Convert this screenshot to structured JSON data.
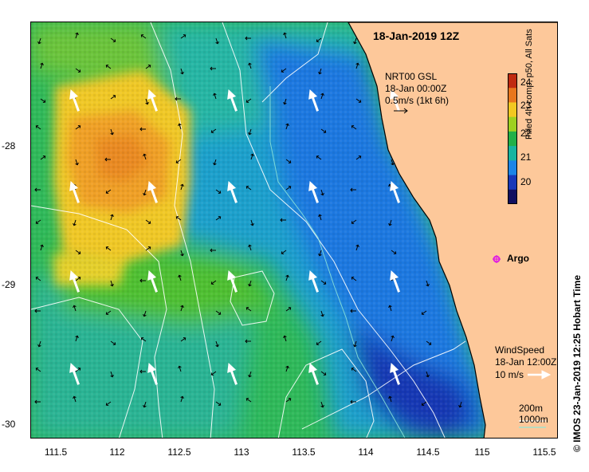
{
  "title": "18-Jan-2019 12Z",
  "x_ticks": [
    "111.5",
    "112",
    "112.5",
    "113",
    "113.5",
    "114",
    "114.5",
    "115",
    "115.5"
  ],
  "y_ticks": [
    "-28",
    "-29",
    "-30"
  ],
  "current_legend": {
    "line1": "NRT00 GSL",
    "line2": "18-Jan 00:00Z",
    "line3": "0.5m/s (1kt 6h)"
  },
  "colorbar": {
    "label": "Filled 4h comp, p50, All Sats",
    "ticks": [
      "24",
      "23",
      "22",
      "21",
      "20"
    ],
    "colors": [
      "#c02a10",
      "#e8761c",
      "#f2c820",
      "#9ed020",
      "#22b048",
      "#18b4a0",
      "#1c84e6",
      "#1838b8",
      "#101060"
    ]
  },
  "argo": {
    "label": "Argo",
    "color": "#e020e0"
  },
  "wind_legend": {
    "line1": "WindSpeed",
    "line2": "18-Jan 12:00Z",
    "line3": "10 m/s"
  },
  "depth_legend": {
    "d1": "200m",
    "d2": "1000m"
  },
  "credit": "© IMOS 23-Jan-2019 12:25 Hobart Time",
  "land_color": "#fdc89a"
}
